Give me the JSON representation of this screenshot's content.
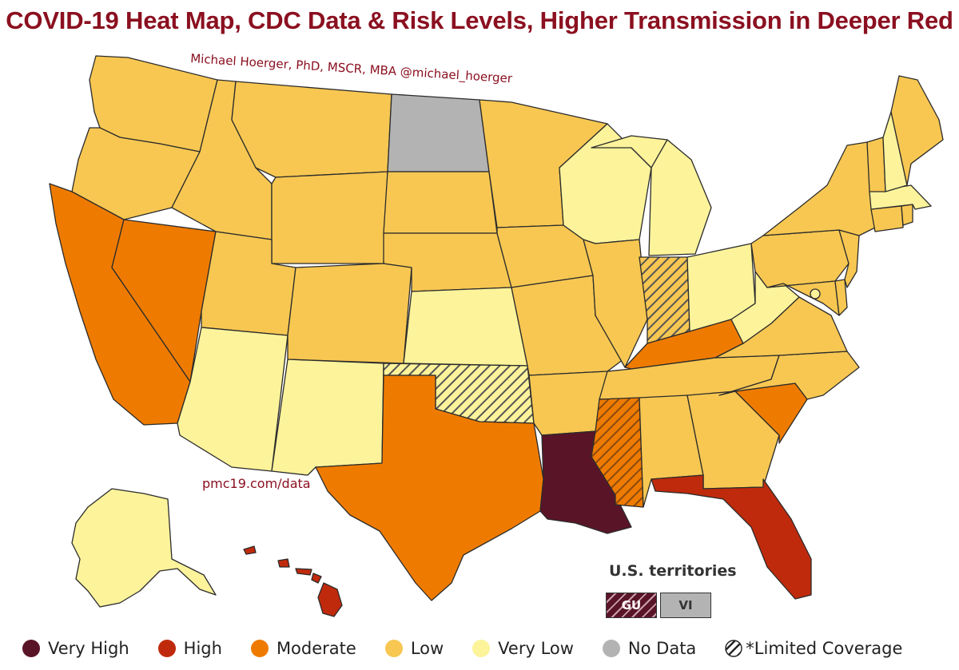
{
  "title": "COVID-19 Heat Map, CDC Data & Risk Levels, Higher Transmission in Deeper Red",
  "credit": "Michael Hoerger, PhD, MSCR, MBA  @michael_hoerger",
  "source_url": "pmc19.com/data",
  "colors": {
    "very_high": "#5a1428",
    "high": "#c02a0c",
    "moderate": "#ee7b00",
    "low": "#f7c752",
    "very_low": "#fcf39b",
    "no_data": "#b3b3b3",
    "border": "#2b2b2b",
    "title": "#8b1020"
  },
  "legend": [
    {
      "key": "very_high",
      "label": "Very High"
    },
    {
      "key": "high",
      "label": "High"
    },
    {
      "key": "moderate",
      "label": "Moderate"
    },
    {
      "key": "low",
      "label": "Low"
    },
    {
      "key": "very_low",
      "label": "Very Low"
    },
    {
      "key": "no_data",
      "label": "No Data"
    }
  ],
  "limited_label": "*Limited Coverage",
  "territories": {
    "title": "U.S. territories",
    "items": [
      {
        "code": "GU",
        "level": "very_high",
        "limited": true
      },
      {
        "code": "VI",
        "level": "no_data",
        "limited": false
      }
    ]
  },
  "states": {
    "WA": {
      "level": "low"
    },
    "OR": {
      "level": "low"
    },
    "CA": {
      "level": "moderate"
    },
    "NV": {
      "level": "moderate"
    },
    "ID": {
      "level": "low"
    },
    "MT": {
      "level": "low"
    },
    "WY": {
      "level": "low"
    },
    "UT": {
      "level": "low"
    },
    "AZ": {
      "level": "very_low"
    },
    "CO": {
      "level": "low"
    },
    "NM": {
      "level": "very_low"
    },
    "ND": {
      "level": "no_data"
    },
    "SD": {
      "level": "low"
    },
    "NE": {
      "level": "low"
    },
    "KS": {
      "level": "very_low"
    },
    "OK": {
      "level": "very_low",
      "limited": true
    },
    "TX": {
      "level": "moderate"
    },
    "MN": {
      "level": "low"
    },
    "IA": {
      "level": "low"
    },
    "MO": {
      "level": "low"
    },
    "AR": {
      "level": "low"
    },
    "LA": {
      "level": "very_high"
    },
    "WI": {
      "level": "very_low"
    },
    "IL": {
      "level": "low"
    },
    "MI": {
      "level": "very_low"
    },
    "IN": {
      "level": "low",
      "limited": true
    },
    "OH": {
      "level": "very_low"
    },
    "KY": {
      "level": "moderate"
    },
    "TN": {
      "level": "low"
    },
    "MS": {
      "level": "moderate",
      "limited": true
    },
    "AL": {
      "level": "low"
    },
    "GA": {
      "level": "low"
    },
    "FL": {
      "level": "high"
    },
    "SC": {
      "level": "moderate"
    },
    "NC": {
      "level": "low"
    },
    "VA": {
      "level": "low"
    },
    "WV": {
      "level": "very_low"
    },
    "PA": {
      "level": "low"
    },
    "NY": {
      "level": "low"
    },
    "VT": {
      "level": "low"
    },
    "NH": {
      "level": "very_low"
    },
    "ME": {
      "level": "low"
    },
    "MA": {
      "level": "very_low"
    },
    "CT": {
      "level": "low"
    },
    "RI": {
      "level": "low"
    },
    "NJ": {
      "level": "low"
    },
    "DE": {
      "level": "low"
    },
    "MD": {
      "level": "low"
    },
    "DC": {
      "level": "very_low"
    },
    "AK": {
      "level": "very_low"
    },
    "HI": {
      "level": "high"
    }
  }
}
